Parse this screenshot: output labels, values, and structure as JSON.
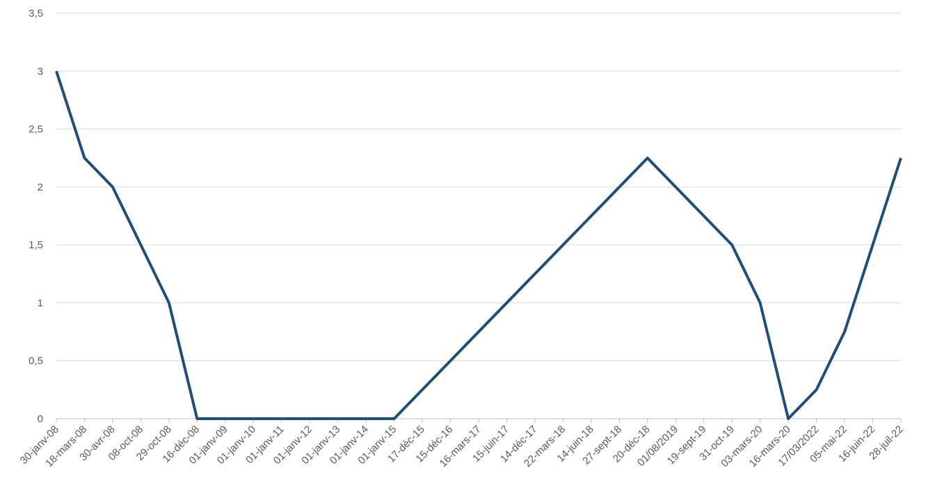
{
  "chart_data": {
    "type": "line",
    "categories": [
      "30-janv-08",
      "18-mars-08",
      "30-avr-08",
      "08-oct-08",
      "29-oct-08",
      "16-déc-08",
      "01-janv-09",
      "01-janv-10",
      "01-janv-11",
      "01-janv-12",
      "01-janv-13",
      "01-janv-14",
      "01-janv-15",
      "17-déc-15",
      "15-déc-16",
      "16-mars-17",
      "15-juin-17",
      "14-déc-17",
      "22-mars-18",
      "14-juin-18",
      "27-sept-18",
      "20-déc-18",
      "01/08/2019",
      "19-sept-19",
      "31-oct-19",
      "03-mars-20",
      "16-mars-20",
      "17/03/2022",
      "05-mai-22",
      "16-juin-22",
      "28-juil-22"
    ],
    "values": [
      3,
      2.25,
      2,
      1.5,
      1,
      0,
      0,
      0,
      0,
      0,
      0,
      0,
      0,
      0.25,
      0.5,
      0.75,
      1,
      1.25,
      1.5,
      1.75,
      2,
      2.25,
      2,
      1.75,
      1.5,
      1,
      0,
      0.25,
      0.75,
      1.5,
      2.25
    ],
    "color": "#1f4e79",
    "ylim": [
      0,
      3.5
    ],
    "yticks": [
      0,
      {
        "value": 0.5,
        "label": "0,5"
      },
      1,
      {
        "value": 1.5,
        "label": "1,5"
      },
      2,
      {
        "value": 2.5,
        "label": "2,5"
      },
      3,
      {
        "value": 3.5,
        "label": "3,5"
      }
    ],
    "grid": true
  }
}
